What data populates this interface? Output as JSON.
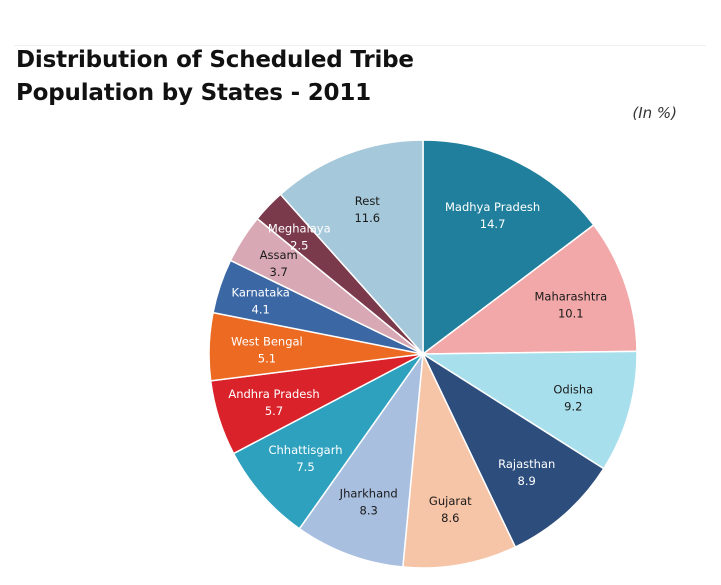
{
  "chart_data": {
    "type": "pie",
    "title": "Distribution of Scheduled Tribe Population by States - 2011",
    "unit_label": "(In %)",
    "slices": [
      {
        "label": "Madhya Pradesh",
        "value": 14.7,
        "color": "#1f7f9c",
        "text_color": "#ffffff"
      },
      {
        "label": "Maharashtra",
        "value": 10.1,
        "color": "#f2a7a8",
        "text_color": "#1a1a1a"
      },
      {
        "label": "Odisha",
        "value": 9.2,
        "color": "#a8dfec",
        "text_color": "#1a1a1a"
      },
      {
        "label": "Rajasthan",
        "value": 8.9,
        "color": "#2d4d7c",
        "text_color": "#ffffff"
      },
      {
        "label": "Gujarat",
        "value": 8.6,
        "color": "#f6c4a6",
        "text_color": "#1a1a1a"
      },
      {
        "label": "Jharkhand",
        "value": 8.3,
        "color": "#a9bfe0",
        "text_color": "#1a1a1a"
      },
      {
        "label": "Chhattisgarh",
        "value": 7.5,
        "color": "#2ea1bf",
        "text_color": "#ffffff"
      },
      {
        "label": "Andhra Pradesh",
        "value": 5.7,
        "color": "#d9222a",
        "text_color": "#ffffff"
      },
      {
        "label": "West Bengal",
        "value": 5.1,
        "color": "#ec6a22",
        "text_color": "#ffffff"
      },
      {
        "label": "Karnataka",
        "value": 4.1,
        "color": "#3b67a4",
        "text_color": "#ffffff"
      },
      {
        "label": "Assam",
        "value": 3.7,
        "color": "#d8a9b4",
        "text_color": "#1a1a1a"
      },
      {
        "label": "Meghalaya",
        "value": 2.5,
        "color": "#7b3a4c",
        "text_color": "#ffffff"
      },
      {
        "label": "Rest",
        "value": 11.6,
        "color": "#a5c8da",
        "text_color": "#1a1a1a"
      }
    ]
  }
}
